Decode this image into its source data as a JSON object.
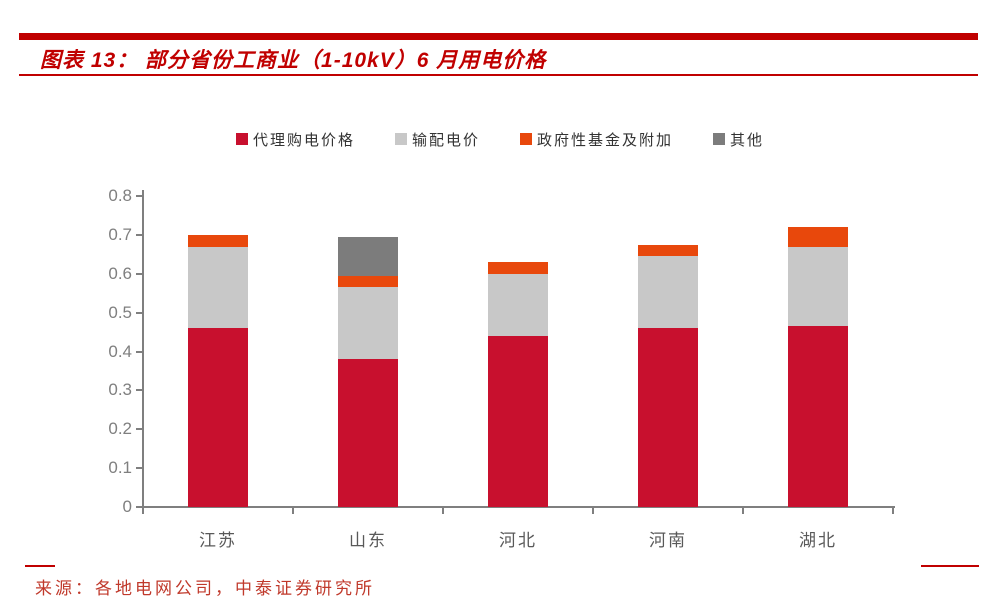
{
  "figure": {
    "title": "图表 13： 部分省份工商业（1-10kV）6 月用电价格",
    "accent_color": "#C00000"
  },
  "chart_data": {
    "type": "bar",
    "stacked": true,
    "title": "部分省份工商业（1-10kV）6月用电价格",
    "xlabel": "",
    "ylabel": "",
    "ylim": [
      0,
      0.8
    ],
    "ytick_step": 0.1,
    "grid": false,
    "legend_position": "top",
    "axis_color": "#7F7F7F",
    "tick_label_color": "#7F7F7F",
    "category_label_color": "#595959",
    "categories": [
      "江苏",
      "山东",
      "河北",
      "河南",
      "湖北"
    ],
    "category_keys": [
      "jiangsu",
      "shandong",
      "hebei",
      "henan",
      "hubei"
    ],
    "series": [
      {
        "name": "代理购电价格",
        "key": "agency-purchase-price",
        "color": "#C8102E",
        "values": [
          0.46,
          0.38,
          0.44,
          0.46,
          0.465
        ]
      },
      {
        "name": "输配电价",
        "key": "transmission-distribution-price",
        "color": "#C8C8C8",
        "values": [
          0.21,
          0.185,
          0.16,
          0.185,
          0.205
        ]
      },
      {
        "name": "政府性基金及附加",
        "key": "government-funds-surcharge",
        "color": "#E8480C",
        "values": [
          0.03,
          0.03,
          0.03,
          0.03,
          0.05
        ]
      },
      {
        "name": "其他",
        "key": "other",
        "color": "#7C7C7C",
        "values": [
          0,
          0.1,
          0,
          0,
          0
        ]
      }
    ],
    "totals": [
      0.7,
      0.695,
      0.63,
      0.675,
      0.72
    ]
  },
  "footer": {
    "source": "来源：各地电网公司，中泰证券研究所"
  }
}
